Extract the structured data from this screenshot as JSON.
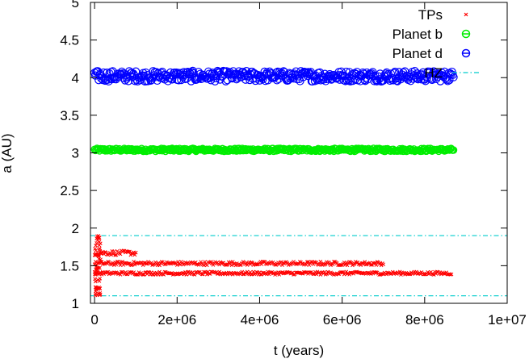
{
  "chart_data": {
    "type": "scatter",
    "xlabel": "t (years)",
    "ylabel": "a (AU)",
    "xlim": [
      -100000,
      10000000
    ],
    "ylim": [
      1,
      5
    ],
    "x_ticks": [
      0,
      2000000,
      4000000,
      6000000,
      8000000,
      10000000
    ],
    "x_tick_labels": [
      "0",
      "2e+06",
      "4e+06",
      "6e+06",
      "8e+06",
      "1e+07"
    ],
    "y_ticks": [
      1,
      1.5,
      2,
      2.5,
      3,
      3.5,
      4,
      4.5,
      5
    ],
    "y_tick_labels": [
      "1",
      "1.5",
      "2",
      "2.5",
      "3",
      "3.5",
      "4",
      "4.5",
      "5"
    ],
    "legend_position": "top-right",
    "series": [
      {
        "name": "TPs",
        "color": "#ff0000",
        "marker": "x",
        "tracks": [
          {
            "x_start": 0,
            "x_end": 1000000,
            "y": 1.67,
            "spread": 0.03
          },
          {
            "x_start": 0,
            "x_end": 7000000,
            "y": 1.53,
            "spread": 0.025
          },
          {
            "x_start": 0,
            "x_end": 8650000,
            "y": 1.4,
            "spread": 0.02
          }
        ],
        "initial_spike": {
          "x": 0,
          "y_min": 1.1,
          "y_max": 1.9
        }
      },
      {
        "name": "Planet b",
        "color": "#00ee00",
        "marker": "open-circle",
        "x_start": 0,
        "x_end": 8700000,
        "y": 3.04,
        "spread": 0.02
      },
      {
        "name": "Planet d",
        "color": "#0000ff",
        "marker": "open-circle",
        "x_start": 0,
        "x_end": 8700000,
        "y": 4.02,
        "spread": 0.07
      },
      {
        "name": "HZ",
        "color": "#00cccc",
        "marker": "dash-dot-line",
        "hlines": [
          1.9,
          1.1
        ]
      }
    ]
  }
}
